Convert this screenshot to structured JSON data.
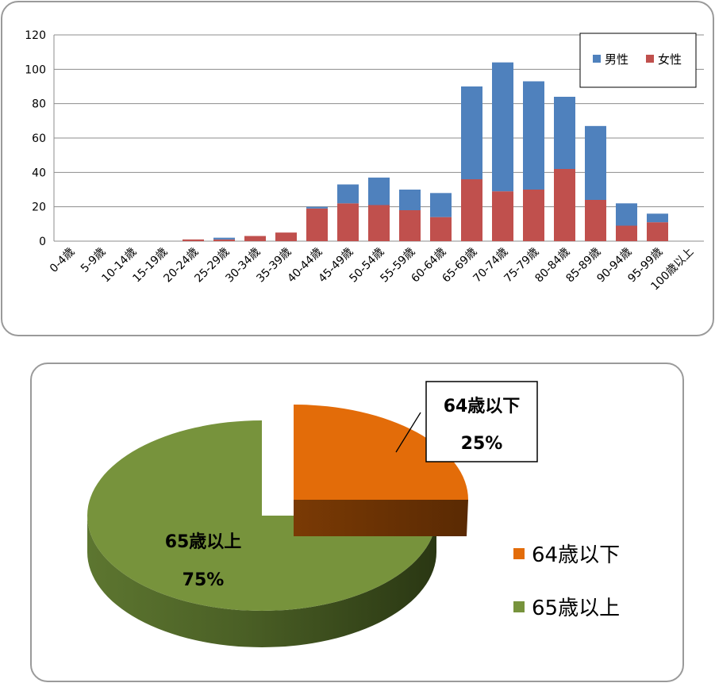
{
  "chart_data": [
    {
      "type": "bar",
      "stacked": true,
      "categories": [
        "0-4歳",
        "5-9歳",
        "10-14歳",
        "15-19歳",
        "20-24歳",
        "25-29歳",
        "30-34歳",
        "35-39歳",
        "40-44歳",
        "45-49歳",
        "50-54歳",
        "55-59歳",
        "60-64歳",
        "65-69歳",
        "70-74歳",
        "75-79歳",
        "80-84歳",
        "85-89歳",
        "90-94歳",
        "95-99歳",
        "100歳以上"
      ],
      "series": [
        {
          "name": "女性",
          "color": "#c0504d",
          "values": [
            0,
            0,
            0,
            0,
            1,
            1,
            3,
            5,
            19,
            22,
            21,
            18,
            14,
            36,
            29,
            30,
            42,
            24,
            9,
            11,
            0
          ]
        },
        {
          "name": "男性",
          "color": "#4f81bd",
          "values": [
            0,
            0,
            0,
            0,
            0,
            1,
            0,
            0,
            1,
            11,
            16,
            12,
            14,
            54,
            75,
            63,
            42,
            43,
            13,
            5,
            0
          ]
        }
      ],
      "ylim": [
        0,
        120
      ],
      "yticks": [
        0,
        20,
        40,
        60,
        80,
        100,
        120
      ],
      "grid": true,
      "legend_position": "top-right",
      "legend": [
        "男性",
        "女性"
      ]
    },
    {
      "type": "pie",
      "labels": [
        "64歳以下",
        "65歳以上"
      ],
      "values": [
        25,
        75
      ],
      "percent_labels": [
        "25%",
        "75%"
      ],
      "colors": [
        "#e36c09",
        "#77933c"
      ],
      "legend_position": "right",
      "exploded": true,
      "three_d": true
    }
  ]
}
